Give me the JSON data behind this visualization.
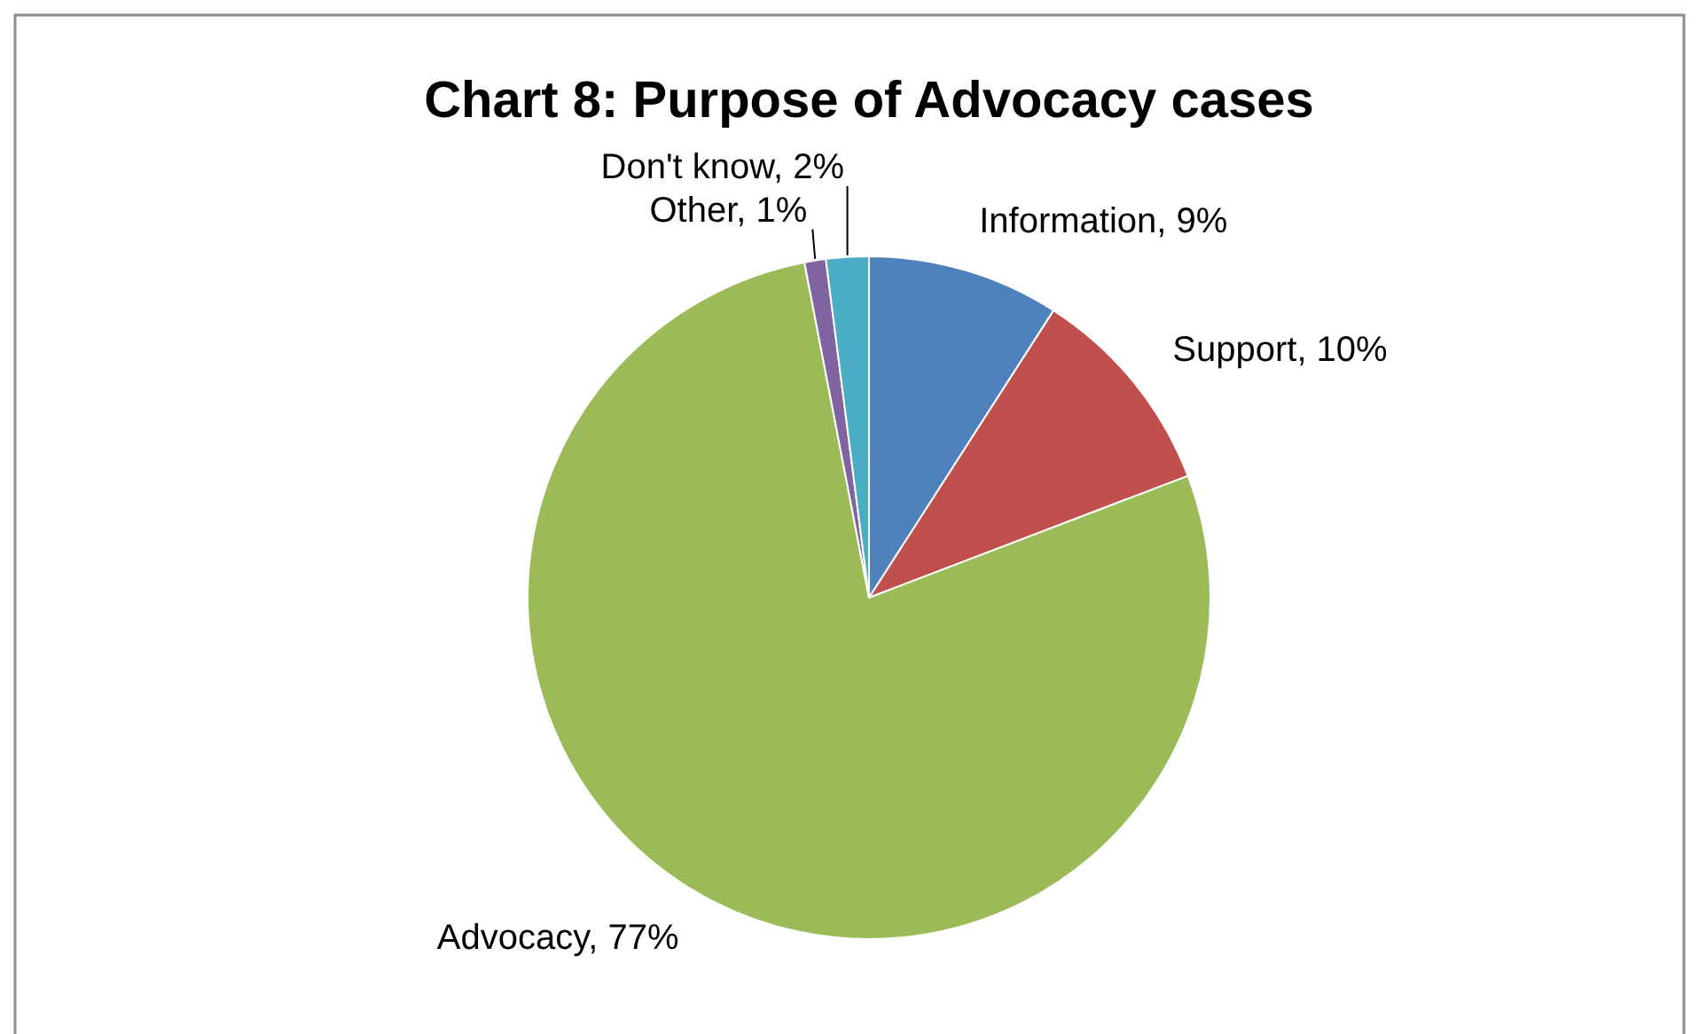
{
  "chart_data": {
    "type": "pie",
    "title": "Chart 8: Purpose of Advocacy cases",
    "categories": [
      "Information",
      "Support",
      "Advocacy",
      "Other",
      "Don't know"
    ],
    "values": [
      9,
      10,
      77,
      1,
      2
    ],
    "colors": [
      "#4f81bd",
      "#c0504d",
      "#9bbb59",
      "#8064a2",
      "#4bacc6"
    ],
    "value_labels": [
      "9%",
      "10%",
      "77%",
      "1%",
      "2%"
    ],
    "legend": false
  }
}
